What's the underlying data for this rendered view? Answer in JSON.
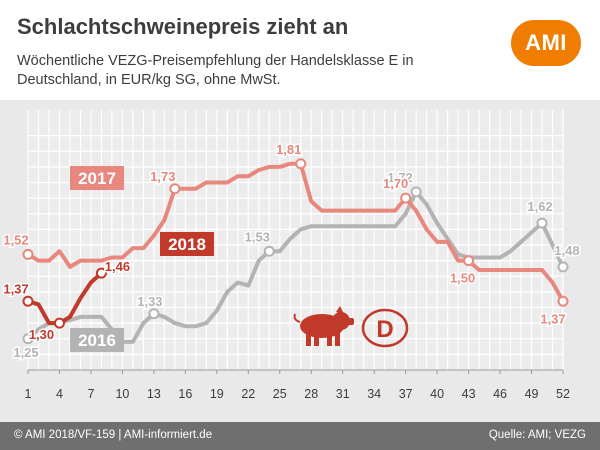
{
  "title": "Schlachtschweinepreis zieht an",
  "subtitle": "Wöchentliche VEZG-Preisempfehlung der Handelsklasse E in Deutschland, in EUR/kg SG, ohne MwSt.",
  "logo_text": "AMI",
  "country_badge": "D",
  "footer": {
    "left": "© AMI 2018/VF-159 | AMI-informiert.de",
    "right": "Quelle: AMI; VEZG"
  },
  "chart_data": {
    "type": "line",
    "x_ticks": [
      1,
      4,
      7,
      10,
      13,
      16,
      19,
      22,
      25,
      28,
      31,
      34,
      37,
      40,
      43,
      46,
      49,
      52
    ],
    "xlim": [
      1,
      52
    ],
    "ylim": [
      1.15,
      1.95
    ],
    "grid": true,
    "colors": {
      "2016": "#b3b3b3",
      "2017": "#e8877d",
      "2018": "#c0392b"
    },
    "series": [
      {
        "name": "2016",
        "points": [
          [
            1,
            1.25
          ],
          [
            2,
            1.28
          ],
          [
            3,
            1.3
          ],
          [
            4,
            1.3
          ],
          [
            5,
            1.31
          ],
          [
            6,
            1.32
          ],
          [
            7,
            1.32
          ],
          [
            8,
            1.32
          ],
          [
            9,
            1.28
          ],
          [
            10,
            1.24
          ],
          [
            11,
            1.24
          ],
          [
            12,
            1.3
          ],
          [
            13,
            1.33
          ],
          [
            14,
            1.32
          ],
          [
            15,
            1.3
          ],
          [
            16,
            1.29
          ],
          [
            17,
            1.29
          ],
          [
            18,
            1.3
          ],
          [
            19,
            1.34
          ],
          [
            20,
            1.4
          ],
          [
            21,
            1.43
          ],
          [
            22,
            1.42
          ],
          [
            23,
            1.5
          ],
          [
            24,
            1.53
          ],
          [
            25,
            1.53
          ],
          [
            26,
            1.57
          ],
          [
            27,
            1.6
          ],
          [
            28,
            1.61
          ],
          [
            29,
            1.61
          ],
          [
            30,
            1.61
          ],
          [
            31,
            1.61
          ],
          [
            32,
            1.61
          ],
          [
            33,
            1.61
          ],
          [
            34,
            1.61
          ],
          [
            35,
            1.61
          ],
          [
            36,
            1.61
          ],
          [
            37,
            1.65
          ],
          [
            38,
            1.72
          ],
          [
            39,
            1.68
          ],
          [
            40,
            1.62
          ],
          [
            41,
            1.57
          ],
          [
            42,
            1.52
          ],
          [
            43,
            1.51
          ],
          [
            44,
            1.51
          ],
          [
            45,
            1.51
          ],
          [
            46,
            1.51
          ],
          [
            47,
            1.53
          ],
          [
            48,
            1.56
          ],
          [
            49,
            1.59
          ],
          [
            50,
            1.62
          ],
          [
            51,
            1.55
          ],
          [
            52,
            1.48
          ]
        ],
        "labels": [
          {
            "week": 1,
            "text": "1,25"
          },
          {
            "week": 13,
            "text": "1,33"
          },
          {
            "week": 24,
            "text": "1,53"
          },
          {
            "week": 38,
            "text": "1,72"
          },
          {
            "week": 50,
            "text": "1,62"
          },
          {
            "week": 52,
            "text": "1,48"
          }
        ]
      },
      {
        "name": "2017",
        "points": [
          [
            1,
            1.52
          ],
          [
            2,
            1.5
          ],
          [
            3,
            1.5
          ],
          [
            4,
            1.53
          ],
          [
            5,
            1.48
          ],
          [
            6,
            1.5
          ],
          [
            7,
            1.5
          ],
          [
            8,
            1.5
          ],
          [
            9,
            1.51
          ],
          [
            10,
            1.51
          ],
          [
            11,
            1.54
          ],
          [
            12,
            1.54
          ],
          [
            13,
            1.58
          ],
          [
            14,
            1.63
          ],
          [
            15,
            1.73
          ],
          [
            16,
            1.73
          ],
          [
            17,
            1.73
          ],
          [
            18,
            1.75
          ],
          [
            19,
            1.75
          ],
          [
            20,
            1.75
          ],
          [
            21,
            1.77
          ],
          [
            22,
            1.77
          ],
          [
            23,
            1.79
          ],
          [
            24,
            1.8
          ],
          [
            25,
            1.8
          ],
          [
            26,
            1.81
          ],
          [
            27,
            1.81
          ],
          [
            28,
            1.69
          ],
          [
            29,
            1.66
          ],
          [
            30,
            1.66
          ],
          [
            31,
            1.66
          ],
          [
            32,
            1.66
          ],
          [
            33,
            1.66
          ],
          [
            34,
            1.66
          ],
          [
            35,
            1.66
          ],
          [
            36,
            1.66
          ],
          [
            37,
            1.7
          ],
          [
            38,
            1.66
          ],
          [
            39,
            1.6
          ],
          [
            40,
            1.56
          ],
          [
            41,
            1.56
          ],
          [
            42,
            1.5
          ],
          [
            43,
            1.5
          ],
          [
            44,
            1.47
          ],
          [
            45,
            1.47
          ],
          [
            46,
            1.47
          ],
          [
            47,
            1.47
          ],
          [
            48,
            1.47
          ],
          [
            49,
            1.47
          ],
          [
            50,
            1.47
          ],
          [
            51,
            1.43
          ],
          [
            52,
            1.37
          ]
        ],
        "labels": [
          {
            "week": 1,
            "text": "1,52"
          },
          {
            "week": 15,
            "text": "1,73"
          },
          {
            "week": 27,
            "text": "1,81"
          },
          {
            "week": 37,
            "text": "1,70"
          },
          {
            "week": 43,
            "text": "1,50"
          },
          {
            "week": 52,
            "text": "1,37"
          }
        ]
      },
      {
        "name": "2018",
        "points": [
          [
            1,
            1.37
          ],
          [
            2,
            1.36
          ],
          [
            3,
            1.3
          ],
          [
            4,
            1.3
          ],
          [
            5,
            1.32
          ],
          [
            6,
            1.38
          ],
          [
            7,
            1.43
          ],
          [
            8,
            1.46
          ]
        ],
        "labels": [
          {
            "week": 1,
            "text": "1,37"
          },
          {
            "week": 4,
            "text": "1,30"
          },
          {
            "week": 8,
            "text": "1,46"
          }
        ]
      }
    ],
    "legend_labels": [
      {
        "series": "2017",
        "text": "2017"
      },
      {
        "series": "2018",
        "text": "2018"
      },
      {
        "series": "2016",
        "text": "2016"
      }
    ]
  }
}
